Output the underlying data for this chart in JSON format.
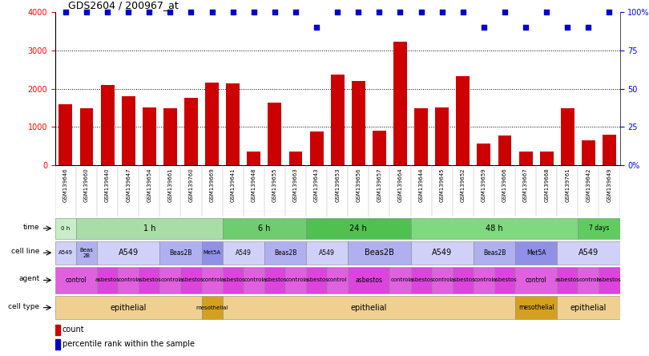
{
  "title": "GDS2604 / 200967_at",
  "gsm_labels": [
    "GSM139646",
    "GSM139660",
    "GSM139640",
    "GSM139647",
    "GSM139654",
    "GSM139661",
    "GSM139760",
    "GSM139669",
    "GSM139641",
    "GSM139648",
    "GSM139655",
    "GSM139663",
    "GSM139643",
    "GSM139653",
    "GSM139656",
    "GSM139657",
    "GSM139664",
    "GSM139644",
    "GSM139645",
    "GSM139652",
    "GSM139659",
    "GSM139666",
    "GSM139667",
    "GSM139668",
    "GSM139761",
    "GSM139642",
    "GSM139649"
  ],
  "counts": [
    1600,
    1480,
    2100,
    1800,
    1510,
    1490,
    1770,
    2150,
    2130,
    350,
    1640,
    350,
    870,
    2370,
    2200,
    900,
    3220,
    1490,
    1510,
    2330,
    560,
    780,
    350,
    350,
    1490,
    650,
    790
  ],
  "percentile_ranks": [
    100,
    100,
    100,
    100,
    100,
    100,
    100,
    100,
    100,
    100,
    100,
    100,
    90,
    100,
    100,
    100,
    100,
    100,
    100,
    100,
    90,
    100,
    90,
    100,
    90,
    90,
    100
  ],
  "time_groups": [
    {
      "label": "0 h",
      "start": 0,
      "end": 1,
      "color": "#c8edc8"
    },
    {
      "label": "1 h",
      "start": 1,
      "end": 8,
      "color": "#a8dda8"
    },
    {
      "label": "6 h",
      "start": 8,
      "end": 12,
      "color": "#70cc70"
    },
    {
      "label": "24 h",
      "start": 12,
      "end": 17,
      "color": "#50c050"
    },
    {
      "label": "48 h",
      "start": 17,
      "end": 25,
      "color": "#80d880"
    },
    {
      "label": "7 days",
      "start": 25,
      "end": 27,
      "color": "#60cc60"
    }
  ],
  "cell_line_groups": [
    {
      "label": "A549",
      "start": 0,
      "end": 1,
      "color": "#d0d0f8"
    },
    {
      "label": "Beas\n2B",
      "start": 1,
      "end": 2,
      "color": "#b0b0f0"
    },
    {
      "label": "A549",
      "start": 2,
      "end": 5,
      "color": "#d0d0f8"
    },
    {
      "label": "Beas2B",
      "start": 5,
      "end": 7,
      "color": "#b0b0f0"
    },
    {
      "label": "Met5A",
      "start": 7,
      "end": 8,
      "color": "#9090e8"
    },
    {
      "label": "A549",
      "start": 8,
      "end": 10,
      "color": "#d0d0f8"
    },
    {
      "label": "Beas2B",
      "start": 10,
      "end": 12,
      "color": "#b0b0f0"
    },
    {
      "label": "A549",
      "start": 12,
      "end": 14,
      "color": "#d0d0f8"
    },
    {
      "label": "Beas2B",
      "start": 14,
      "end": 17,
      "color": "#b0b0f0"
    },
    {
      "label": "A549",
      "start": 17,
      "end": 20,
      "color": "#d0d0f8"
    },
    {
      "label": "Beas2B",
      "start": 20,
      "end": 22,
      "color": "#b0b0f0"
    },
    {
      "label": "Met5A",
      "start": 22,
      "end": 24,
      "color": "#9090e8"
    },
    {
      "label": "A549",
      "start": 24,
      "end": 27,
      "color": "#d0d0f8"
    }
  ],
  "agent_groups": [
    {
      "label": "control",
      "start": 0,
      "end": 2,
      "color": "#e060e0"
    },
    {
      "label": "asbestos",
      "start": 2,
      "end": 3,
      "color": "#dd44dd"
    },
    {
      "label": "control",
      "start": 3,
      "end": 4,
      "color": "#e060e0"
    },
    {
      "label": "asbestos",
      "start": 4,
      "end": 5,
      "color": "#dd44dd"
    },
    {
      "label": "control",
      "start": 5,
      "end": 6,
      "color": "#e060e0"
    },
    {
      "label": "asbestos",
      "start": 6,
      "end": 7,
      "color": "#dd44dd"
    },
    {
      "label": "control",
      "start": 7,
      "end": 8,
      "color": "#e060e0"
    },
    {
      "label": "asbestos",
      "start": 8,
      "end": 9,
      "color": "#dd44dd"
    },
    {
      "label": "control",
      "start": 9,
      "end": 10,
      "color": "#e060e0"
    },
    {
      "label": "asbestos",
      "start": 10,
      "end": 11,
      "color": "#dd44dd"
    },
    {
      "label": "control",
      "start": 11,
      "end": 12,
      "color": "#e060e0"
    },
    {
      "label": "asbestos",
      "start": 12,
      "end": 13,
      "color": "#dd44dd"
    },
    {
      "label": "control",
      "start": 13,
      "end": 14,
      "color": "#e060e0"
    },
    {
      "label": "asbestos",
      "start": 14,
      "end": 16,
      "color": "#dd44dd"
    },
    {
      "label": "control",
      "start": 16,
      "end": 17,
      "color": "#e060e0"
    },
    {
      "label": "asbestos",
      "start": 17,
      "end": 18,
      "color": "#dd44dd"
    },
    {
      "label": "control",
      "start": 18,
      "end": 19,
      "color": "#e060e0"
    },
    {
      "label": "asbestos",
      "start": 19,
      "end": 20,
      "color": "#dd44dd"
    },
    {
      "label": "control",
      "start": 20,
      "end": 21,
      "color": "#e060e0"
    },
    {
      "label": "asbestos",
      "start": 21,
      "end": 22,
      "color": "#dd44dd"
    },
    {
      "label": "control",
      "start": 22,
      "end": 24,
      "color": "#e060e0"
    },
    {
      "label": "asbestos",
      "start": 24,
      "end": 25,
      "color": "#dd44dd"
    },
    {
      "label": "control",
      "start": 25,
      "end": 26,
      "color": "#e060e0"
    },
    {
      "label": "asbestos",
      "start": 26,
      "end": 27,
      "color": "#dd44dd"
    }
  ],
  "cell_type_groups": [
    {
      "label": "epithelial",
      "start": 0,
      "end": 7,
      "color": "#f0d090"
    },
    {
      "label": "mesothelial",
      "start": 7,
      "end": 8,
      "color": "#d4a020"
    },
    {
      "label": "epithelial",
      "start": 8,
      "end": 22,
      "color": "#f0d090"
    },
    {
      "label": "mesothelial",
      "start": 22,
      "end": 24,
      "color": "#d4a020"
    },
    {
      "label": "epithelial",
      "start": 24,
      "end": 27,
      "color": "#f0d090"
    }
  ],
  "bar_color": "#cc0000",
  "dot_color": "#0000cc",
  "ylim_left": [
    0,
    4000
  ],
  "ylim_right": [
    0,
    100
  ],
  "yticks_left": [
    0,
    1000,
    2000,
    3000,
    4000
  ],
  "ytick_labels_right": [
    "0%",
    "25",
    "50",
    "75",
    "100%"
  ],
  "yticks_right": [
    0,
    25,
    50,
    75,
    100
  ],
  "background_color": "#ffffff",
  "legend_items": [
    {
      "label": "count",
      "color": "#cc0000"
    },
    {
      "label": "percentile rank within the sample",
      "color": "#0000cc"
    }
  ],
  "row_labels": [
    "time",
    "cell line",
    "agent",
    "cell type"
  ],
  "gsm_bg_color": "#e0e0e0"
}
